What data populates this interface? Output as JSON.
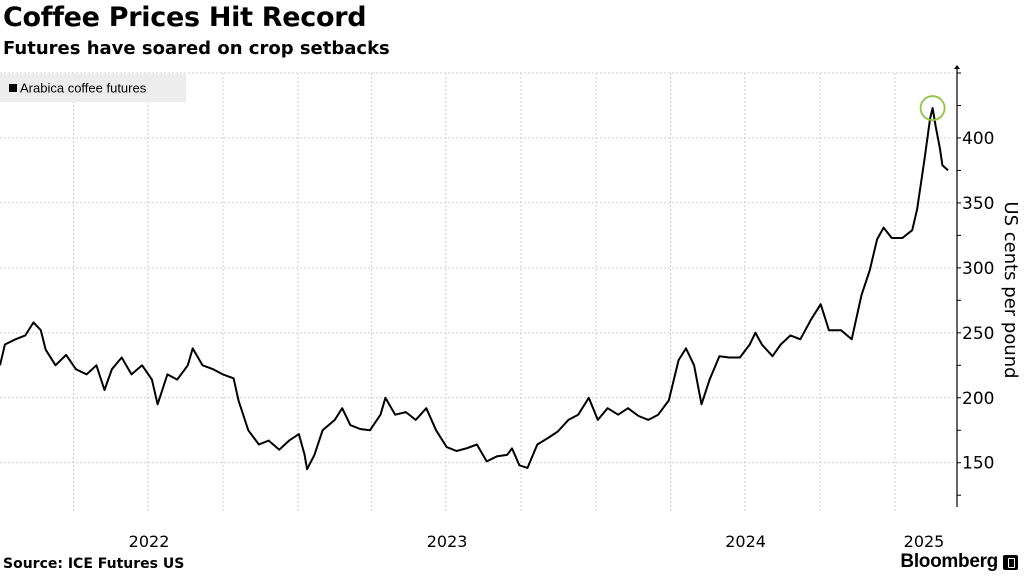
{
  "header": {
    "title": "Coffee Prices Hit Record",
    "subtitle": "Futures have soared on crop setbacks"
  },
  "footer": {
    "source": "Source: ICE Futures US",
    "brand": "Bloomberg"
  },
  "chart_data": {
    "type": "line",
    "title": "Coffee Prices Hit Record",
    "subtitle": "Futures have soared on crop setbacks",
    "ylabel": "US cents per pound",
    "xlabel": "",
    "xlim": [
      "2022-01-01",
      "2025-03-13"
    ],
    "ylim": [
      119,
      450
    ],
    "y_ticks": [
      150,
      200,
      250,
      300,
      350,
      400
    ],
    "x_tick_labels": [
      "2022",
      "2023",
      "2024",
      "2025"
    ],
    "grid": true,
    "legend_position": "top-left",
    "line_color": "#000000",
    "highlight_color": "#8cc63f",
    "highlight": {
      "date": "2025-02-16",
      "value": 423
    },
    "series": [
      {
        "name": "Arabica coffee futures",
        "points": [
          [
            "2022-01-01",
            225
          ],
          [
            "2022-01-07",
            241
          ],
          [
            "2022-01-20",
            245
          ],
          [
            "2022-02-01",
            248
          ],
          [
            "2022-02-11",
            258
          ],
          [
            "2022-02-20",
            252
          ],
          [
            "2022-02-26",
            237
          ],
          [
            "2022-03-10",
            225
          ],
          [
            "2022-03-23",
            233
          ],
          [
            "2022-04-04",
            222
          ],
          [
            "2022-04-17",
            218
          ],
          [
            "2022-04-29",
            225
          ],
          [
            "2022-05-09",
            206
          ],
          [
            "2022-05-18",
            222
          ],
          [
            "2022-05-30",
            231
          ],
          [
            "2022-06-11",
            218
          ],
          [
            "2022-06-24",
            225
          ],
          [
            "2022-07-06",
            214
          ],
          [
            "2022-07-13",
            195
          ],
          [
            "2022-07-25",
            218
          ],
          [
            "2022-08-06",
            214
          ],
          [
            "2022-08-19",
            225
          ],
          [
            "2022-08-25",
            238
          ],
          [
            "2022-09-06",
            225
          ],
          [
            "2022-09-19",
            222
          ],
          [
            "2022-10-01",
            218
          ],
          [
            "2022-10-14",
            215
          ],
          [
            "2022-10-20",
            198
          ],
          [
            "2022-11-01",
            175
          ],
          [
            "2022-11-14",
            164
          ],
          [
            "2022-11-26",
            167
          ],
          [
            "2022-12-09",
            160
          ],
          [
            "2022-12-21",
            167
          ],
          [
            "2023-01-02",
            172
          ],
          [
            "2023-01-09",
            156
          ],
          [
            "2023-01-12",
            145
          ],
          [
            "2023-01-21",
            156
          ],
          [
            "2023-01-31",
            175
          ],
          [
            "2023-02-15",
            183
          ],
          [
            "2023-02-24",
            192
          ],
          [
            "2023-03-06",
            179
          ],
          [
            "2023-03-18",
            176
          ],
          [
            "2023-03-30",
            175
          ],
          [
            "2023-04-12",
            187
          ],
          [
            "2023-04-18",
            200
          ],
          [
            "2023-04-30",
            187
          ],
          [
            "2023-05-13",
            189
          ],
          [
            "2023-05-25",
            183
          ],
          [
            "2023-06-07",
            192
          ],
          [
            "2023-06-19",
            175
          ],
          [
            "2023-07-02",
            162
          ],
          [
            "2023-07-14",
            159
          ],
          [
            "2023-07-26",
            161
          ],
          [
            "2023-08-08",
            164
          ],
          [
            "2023-08-20",
            151
          ],
          [
            "2023-09-02",
            155
          ],
          [
            "2023-09-14",
            156
          ],
          [
            "2023-09-20",
            161
          ],
          [
            "2023-09-29",
            148
          ],
          [
            "2023-10-09",
            146
          ],
          [
            "2023-10-21",
            164
          ],
          [
            "2023-11-03",
            169
          ],
          [
            "2023-11-15",
            174
          ],
          [
            "2023-11-28",
            183
          ],
          [
            "2023-12-10",
            187
          ],
          [
            "2023-12-23",
            200
          ],
          [
            "2024-01-03",
            183
          ],
          [
            "2024-01-15",
            192
          ],
          [
            "2024-01-28",
            187
          ],
          [
            "2024-02-09",
            192
          ],
          [
            "2024-02-22",
            186
          ],
          [
            "2024-03-05",
            183
          ],
          [
            "2024-03-17",
            187
          ],
          [
            "2024-03-30",
            198
          ],
          [
            "2024-04-11",
            229
          ],
          [
            "2024-04-20",
            238
          ],
          [
            "2024-04-30",
            225
          ],
          [
            "2024-05-09",
            195
          ],
          [
            "2024-05-19",
            214
          ],
          [
            "2024-05-31",
            232
          ],
          [
            "2024-06-12",
            231
          ],
          [
            "2024-06-25",
            231
          ],
          [
            "2024-07-07",
            241
          ],
          [
            "2024-07-14",
            250
          ],
          [
            "2024-07-22",
            241
          ],
          [
            "2024-08-04",
            232
          ],
          [
            "2024-08-14",
            241
          ],
          [
            "2024-08-26",
            248
          ],
          [
            "2024-09-07",
            245
          ],
          [
            "2024-09-20",
            260
          ],
          [
            "2024-10-02",
            272
          ],
          [
            "2024-10-12",
            252
          ],
          [
            "2024-10-27",
            252
          ],
          [
            "2024-11-09",
            245
          ],
          [
            "2024-11-21",
            279
          ],
          [
            "2024-12-01",
            298
          ],
          [
            "2024-12-10",
            322
          ],
          [
            "2024-12-18",
            331
          ],
          [
            "2024-12-28",
            323
          ],
          [
            "2025-01-10",
            323
          ],
          [
            "2025-01-22",
            329
          ],
          [
            "2025-01-28",
            345
          ],
          [
            "2025-02-06",
            383
          ],
          [
            "2025-02-13",
            415
          ],
          [
            "2025-02-16",
            423
          ],
          [
            "2025-02-20",
            408
          ],
          [
            "2025-02-25",
            392
          ],
          [
            "2025-02-28",
            379
          ],
          [
            "2025-03-07",
            375
          ]
        ]
      }
    ]
  }
}
